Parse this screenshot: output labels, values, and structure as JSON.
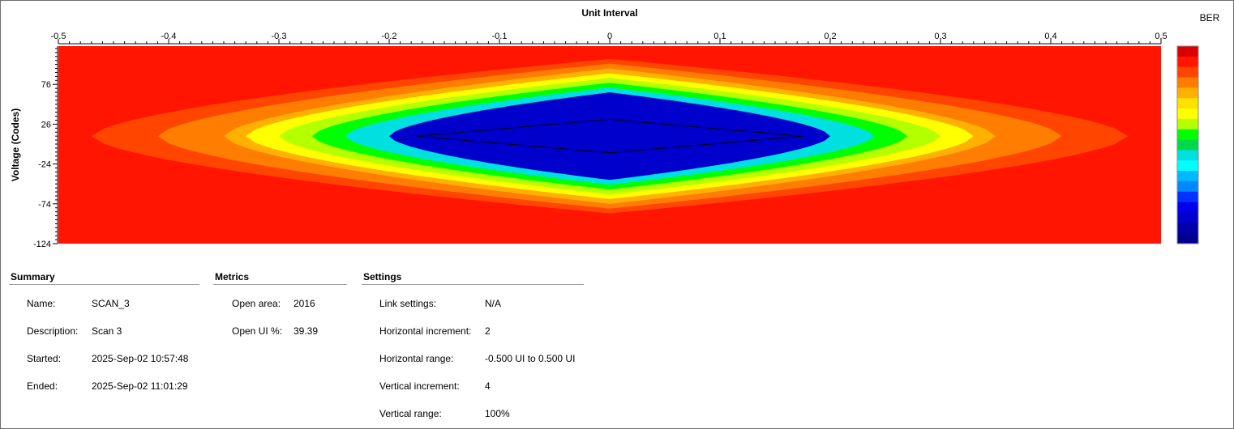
{
  "chart_data": {
    "type": "heatmap",
    "title": "Unit Interval",
    "xlabel": "Unit Interval",
    "ylabel": "Voltage (Codes)",
    "xlim": [
      -0.5,
      0.5
    ],
    "ylim": [
      -124,
      124
    ],
    "x_ticks": [
      "-0.5",
      "-0.4",
      "-0.3",
      "-0.2",
      "-0.1",
      "0",
      "0.1",
      "0.2",
      "0.3",
      "0.4",
      "0.5"
    ],
    "y_ticks": [
      "76",
      "26",
      "-24",
      "-74",
      "-124"
    ],
    "colorbar_label": "BER",
    "colorbar_colors": [
      "#dd0000",
      "#ff1500",
      "#ff4500",
      "#ff7d00",
      "#ffb000",
      "#ffe100",
      "#ffff00",
      "#b4ff00",
      "#00ff00",
      "#00d94a",
      "#00e0e0",
      "#00ffff",
      "#00b8ff",
      "#0088ff",
      "#0033ff",
      "#0000ee",
      "#0000cc",
      "#0000a8",
      "#000090"
    ],
    "eye_half_width_ui": [
      0.47,
      0.41,
      0.35,
      0.33,
      0.3,
      0.27,
      0.24,
      0.2
    ],
    "eye_center_voltage": 11,
    "eye_half_height_codes": 97,
    "open_area_polygon": [
      [
        -0.175,
        11
      ],
      [
        0,
        32
      ],
      [
        0.175,
        11
      ],
      [
        0,
        -10
      ]
    ]
  },
  "summary": {
    "title": "Summary",
    "rows": [
      {
        "label": "Name:",
        "value": "SCAN_3"
      },
      {
        "label": "Description:",
        "value": "Scan 3"
      },
      {
        "label": "Started:",
        "value": "2025-Sep-02 10:57:48"
      },
      {
        "label": "Ended:",
        "value": "2025-Sep-02 11:01:29"
      }
    ]
  },
  "metrics": {
    "title": "Metrics",
    "rows": [
      {
        "label": "Open area:",
        "value": "2016"
      },
      {
        "label": "Open UI %:",
        "value": "39.39"
      }
    ]
  },
  "settings": {
    "title": "Settings",
    "rows": [
      {
        "label": "Link settings:",
        "value": "N/A"
      },
      {
        "label": "Horizontal increment:",
        "value": "2"
      },
      {
        "label": "Horizontal range:",
        "value": "-0.500 UI to 0.500 UI"
      },
      {
        "label": "Vertical increment:",
        "value": "4"
      },
      {
        "label": "Vertical range:",
        "value": "100%"
      }
    ]
  }
}
